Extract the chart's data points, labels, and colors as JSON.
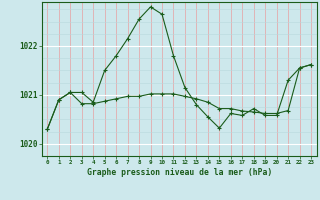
{
  "title": "Graphe pression niveau de la mer (hPa)",
  "bg_color": "#cde8ec",
  "grid_color_major": "#ffffff",
  "grid_color_minor": "#b8d8dc",
  "grid_color_vert": "#f0b8b8",
  "line_color": "#1a5c1a",
  "marker_color": "#1a5c1a",
  "xlim": [
    -0.5,
    23.5
  ],
  "ylim": [
    1019.75,
    1022.9
  ],
  "yticks": [
    1020,
    1021,
    1022
  ],
  "xticks": [
    0,
    1,
    2,
    3,
    4,
    5,
    6,
    7,
    8,
    9,
    10,
    11,
    12,
    13,
    14,
    15,
    16,
    17,
    18,
    19,
    20,
    21,
    22,
    23
  ],
  "series1_x": [
    0,
    1,
    2,
    3,
    4,
    5,
    6,
    7,
    8,
    9,
    10,
    11,
    12,
    13,
    14,
    15,
    16,
    17,
    18,
    19,
    20,
    21,
    22,
    23
  ],
  "series1_y": [
    1020.3,
    1020.9,
    1021.05,
    1021.05,
    1020.85,
    1021.5,
    1021.8,
    1022.15,
    1022.55,
    1022.8,
    1022.65,
    1021.8,
    1021.15,
    1020.8,
    1020.55,
    1020.32,
    1020.62,
    1020.58,
    1020.72,
    1020.58,
    1020.58,
    1021.3,
    1021.55,
    1021.62
  ],
  "series2_x": [
    0,
    1,
    2,
    3,
    4,
    5,
    6,
    7,
    8,
    9,
    10,
    11,
    12,
    13,
    14,
    15,
    16,
    17,
    18,
    19,
    20,
    21,
    22,
    23
  ],
  "series2_y": [
    1020.3,
    1020.9,
    1021.05,
    1020.82,
    1020.82,
    1020.87,
    1020.92,
    1020.97,
    1020.97,
    1021.02,
    1021.02,
    1021.02,
    1020.97,
    1020.92,
    1020.85,
    1020.72,
    1020.72,
    1020.67,
    1020.65,
    1020.62,
    1020.62,
    1020.68,
    1021.55,
    1021.62
  ]
}
